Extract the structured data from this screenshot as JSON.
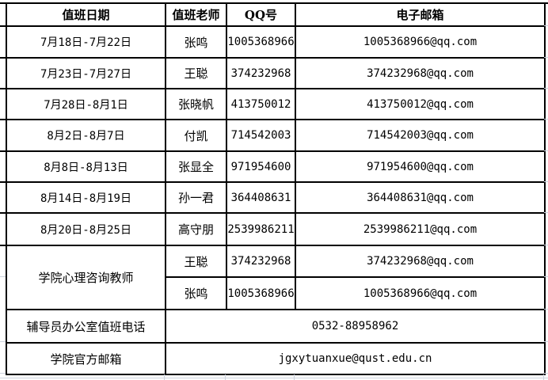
{
  "table": {
    "headers": [
      "值班日期",
      "值班老师",
      "QQ号",
      "电子邮箱"
    ],
    "duty_rows": [
      {
        "date": "7月18日-7月22日",
        "teacher": "张鸣",
        "qq": "1005368966",
        "email": "1005368966@qq.com"
      },
      {
        "date": "7月23日-7月27日",
        "teacher": "王聪",
        "qq": "374232968",
        "email": "374232968@qq.com"
      },
      {
        "date": "7月28日-8月1日",
        "teacher": "张晓帆",
        "qq": "413750012",
        "email": "413750012@qq.com"
      },
      {
        "date": "8月2日-8月7日",
        "teacher": "付凯",
        "qq": "714542003",
        "email": "714542003@qq.com"
      },
      {
        "date": "8月8日-8月13日",
        "teacher": "张显全",
        "qq": "971954600",
        "email": "971954600@qq.com"
      },
      {
        "date": "8月14日-8月19日",
        "teacher": "孙一君",
        "qq": "364408631",
        "email": "364408631@qq.com"
      },
      {
        "date": "8月20日-8月25日",
        "teacher": "高守朋",
        "qq": "2539986211",
        "email": "2539986211@qq.com"
      }
    ],
    "psych": {
      "label": "学院心理咨询教师",
      "rows": [
        {
          "teacher": "王聪",
          "qq": "374232968",
          "email": "374232968@qq.com"
        },
        {
          "teacher": "张鸣",
          "qq": "1005368966",
          "email": "1005368966@qq.com"
        }
      ]
    },
    "phone": {
      "label": "辅导员办公室值班电话",
      "value": "0532-88958962"
    },
    "official_email": {
      "label": "学院官方邮箱",
      "value": "jgxytuanxue@qust.edu.cn"
    }
  },
  "colors": {
    "table_border": "#000000",
    "gridline": "#cdd3de",
    "background": "#ffffff",
    "text": "#000000"
  }
}
